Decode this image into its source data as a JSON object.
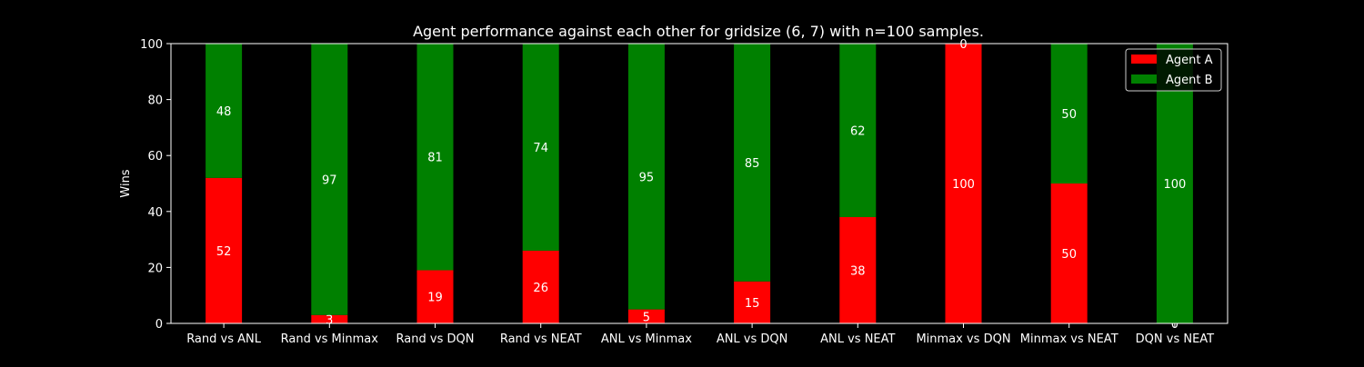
{
  "chart_data": {
    "type": "bar",
    "stacked": true,
    "title": "Agent performance against each other for gridsize (6, 7) with n=100 samples.",
    "xlabel": "",
    "ylabel": "Wins",
    "ylim": [
      0,
      100
    ],
    "yticks": [
      0,
      20,
      40,
      60,
      80,
      100
    ],
    "grid": false,
    "legend_position": "top-right",
    "categories": [
      "Rand vs ANL",
      "Rand vs Minmax",
      "Rand vs DQN",
      "Rand vs NEAT",
      "ANL vs Minmax",
      "ANL vs DQN",
      "ANL vs NEAT",
      "Minmax vs DQN",
      "Minmax vs NEAT",
      "DQN vs NEAT"
    ],
    "series": [
      {
        "name": "Agent A",
        "color": "#ff0000",
        "values": [
          52,
          3,
          19,
          26,
          5,
          15,
          38,
          100,
          50,
          0
        ]
      },
      {
        "name": "Agent B",
        "color": "#008000",
        "values": [
          48,
          97,
          81,
          74,
          95,
          85,
          62,
          0,
          50,
          100
        ]
      }
    ]
  }
}
